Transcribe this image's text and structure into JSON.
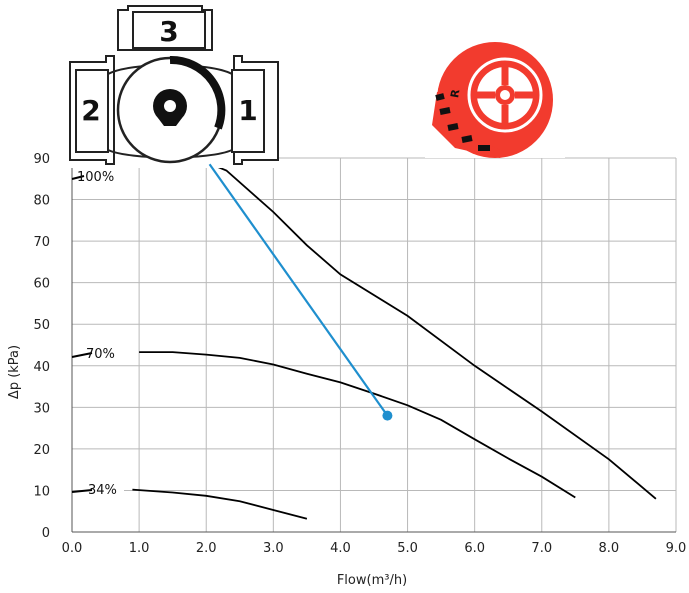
{
  "chart_data": {
    "type": "line",
    "xlabel": "Flow(m³/h)",
    "ylabel": "Δp (kPa)",
    "xlim": [
      0,
      9
    ],
    "ylim": [
      0,
      90
    ],
    "x_ticks": [
      "0.0",
      "1.0",
      "2.0",
      "3.0",
      "4.0",
      "5.0",
      "6.0",
      "7.0",
      "8.0",
      "9.0"
    ],
    "y_ticks": [
      "0",
      "10",
      "20",
      "30",
      "40",
      "50",
      "60",
      "70",
      "80",
      "90"
    ],
    "grid": true,
    "series": [
      {
        "name": "100%",
        "points": [
          [
            2.0,
            89
          ],
          [
            2.3,
            87
          ],
          [
            3.0,
            77
          ],
          [
            3.5,
            69
          ],
          [
            4.0,
            62
          ],
          [
            5.0,
            52
          ],
          [
            6.0,
            40
          ],
          [
            7.0,
            29
          ],
          [
            8.0,
            17.5
          ],
          [
            8.7,
            8
          ]
        ]
      },
      {
        "name": "70%",
        "points": [
          [
            1.0,
            43.3
          ],
          [
            1.5,
            43.3
          ],
          [
            2.0,
            42.7
          ],
          [
            2.5,
            41.9
          ],
          [
            3.0,
            40.3
          ],
          [
            3.5,
            38.1
          ],
          [
            4.0,
            36
          ],
          [
            4.5,
            33.3
          ],
          [
            5.0,
            30.5
          ],
          [
            5.5,
            27
          ],
          [
            6.0,
            22.3
          ],
          [
            6.5,
            17.7
          ],
          [
            7.0,
            13.3
          ],
          [
            7.5,
            8.3
          ]
        ]
      },
      {
        "name": "34%",
        "points": [
          [
            0.9,
            10.2
          ],
          [
            1.5,
            9.5
          ],
          [
            2.0,
            8.7
          ],
          [
            2.5,
            7.4
          ],
          [
            3.0,
            5.3
          ],
          [
            3.5,
            3.2
          ]
        ]
      }
    ],
    "curve_labels": [
      "100%",
      "70%",
      "34%"
    ],
    "operating_line": {
      "color": "#1f8fce",
      "from": [
        2.05,
        88.5
      ],
      "to": [
        4.7,
        28
      ]
    }
  },
  "illustrations": {
    "valve_port_labels": [
      "3",
      "2",
      "1"
    ],
    "actuator_letter": "R",
    "actuator_color": "#f23b2e"
  }
}
